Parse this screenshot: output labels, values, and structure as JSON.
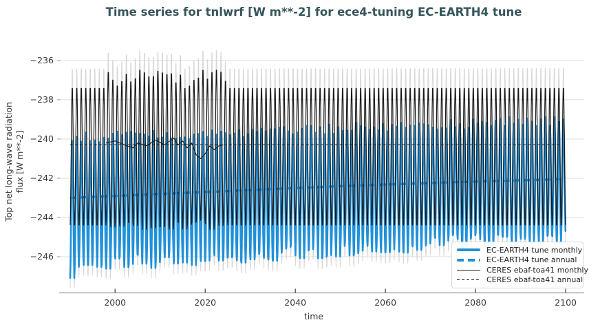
{
  "title": {
    "text": "Time series for tnlwrf [W m**-2] for ece4-tuning EC-EARTH4 tune",
    "color": "#36555c"
  },
  "axes": {
    "xlabel": "time",
    "ylabel_lines": [
      "Top net long-wave radiation",
      "flux [W m**-2]"
    ]
  },
  "chart_data": {
    "type": "line",
    "title": "Time series for tnlwrf [W m**-2] for ece4-tuning EC-EARTH4 tune",
    "xlabel": "time",
    "ylabel": "Top net long-wave radiation flux [W m**-2]",
    "x_range": [
      1987.9,
      2103.5
    ],
    "y_range": [
      -247.84,
      -234.67
    ],
    "x_ticks": [
      2000,
      2020,
      2040,
      2060,
      2080,
      2100
    ],
    "y_ticks": [
      -236,
      -238,
      -240,
      -242,
      -244,
      -246
    ],
    "grid": "horizontal",
    "legend_position": "bottom-right",
    "colors": {
      "tune_blue": "#2090d9",
      "obs_black": "#1a1a1a",
      "envelope_gray": "#d7d7d7",
      "grid": "#e4e4e4",
      "axis_line": "#9b9b9b",
      "tick_mark": "#3c3c3c"
    },
    "series": [
      {
        "name": "EC-EARTH4 tune monthly",
        "kind": "monthly_seasonal",
        "style": {
          "color": "#2090d9",
          "width": 2.6,
          "dash": null,
          "linecap": "round"
        },
        "x_start": 1990,
        "x_end": 2099,
        "seasonal_peak_start": -239.85,
        "seasonal_peak_end": -238.95,
        "seasonal_trough_start": -246.5,
        "seasonal_trough_end": -245.05,
        "first_year_trough": -247.2,
        "peak_jitter": 0.28,
        "trough_jitter": 0.45
      },
      {
        "name": "EC-EARTH4 tune annual",
        "kind": "annual_line",
        "style": {
          "color": "#2090d9",
          "width": 3.5,
          "dash": [
            9,
            6
          ],
          "linecap": "butt"
        },
        "points": [
          [
            1990,
            -243.0
          ],
          [
            2010,
            -242.8
          ],
          [
            2030,
            -242.6
          ],
          [
            2050,
            -242.4
          ],
          [
            2075,
            -242.2
          ],
          [
            2099,
            -242.05
          ]
        ]
      },
      {
        "name": "CERES ebaf-toa41 monthly",
        "kind": "monthly_seasonal",
        "style": {
          "color": "#1a1a1a",
          "width": 1.2,
          "dash": null,
          "linecap": "butt"
        },
        "x_start": 1990,
        "x_end": 2099,
        "seasonal_peak_start": -237.3,
        "seasonal_peak_end": -237.3,
        "seasonal_trough_start": -244.5,
        "seasonal_trough_end": -244.5,
        "observed_window": [
          1998,
          2024
        ],
        "observed_peak_max": -236.35,
        "peak_jitter": 0,
        "trough_jitter": 0
      },
      {
        "name": "CERES ebaf-toa41 annual",
        "kind": "annual_line",
        "style": {
          "color": "#1a1a1a",
          "width": 1,
          "dash": [
            4,
            3
          ],
          "linecap": "butt"
        },
        "climatology_value": -240.3,
        "points": [
          [
            1990,
            -240.3
          ],
          [
            2099,
            -240.3
          ]
        ],
        "observed_solid_points": [
          [
            1998,
            -240.2
          ],
          [
            2000,
            -240.1
          ],
          [
            2002,
            -240.3
          ],
          [
            2004,
            -240.45
          ],
          [
            2005,
            -240.2
          ],
          [
            2007,
            -240.35
          ],
          [
            2009,
            -240.05
          ],
          [
            2011,
            -240.3
          ],
          [
            2013,
            -239.95
          ],
          [
            2014,
            -240.3
          ],
          [
            2015,
            -240.1
          ],
          [
            2016,
            -240.45
          ],
          [
            2017,
            -240.2
          ],
          [
            2018,
            -240.8
          ],
          [
            2019,
            -241.0
          ],
          [
            2020,
            -240.75
          ],
          [
            2021,
            -240.35
          ],
          [
            2022,
            -240.55
          ],
          [
            2023,
            -240.35
          ],
          [
            2024,
            -240.3
          ]
        ]
      },
      {
        "name": "unlabeled monthly extremes envelope",
        "kind": "derived_envelope",
        "style": {
          "color": "#d7d7d7",
          "width": 1,
          "dash": null,
          "linecap": "butt"
        },
        "peak_offset_above_ceres": 1.05,
        "trough_offset_below_tune": -0.6
      }
    ],
    "legend": {
      "entries": [
        {
          "label": "EC-EARTH4 tune monthly",
          "color": "#2090d9",
          "height": 4,
          "dash": null
        },
        {
          "label": "EC-EARTH4 tune annual",
          "color": "#2090d9",
          "height": 4,
          "dash": [
            10,
            6
          ]
        },
        {
          "label": "CERES ebaf-toa41 monthly",
          "color": "#1a1a1a",
          "height": 1.5,
          "dash": null
        },
        {
          "label": "CERES ebaf-toa41 annual",
          "color": "#1a1a1a",
          "height": 1,
          "dash": [
            4,
            3
          ]
        }
      ]
    }
  }
}
